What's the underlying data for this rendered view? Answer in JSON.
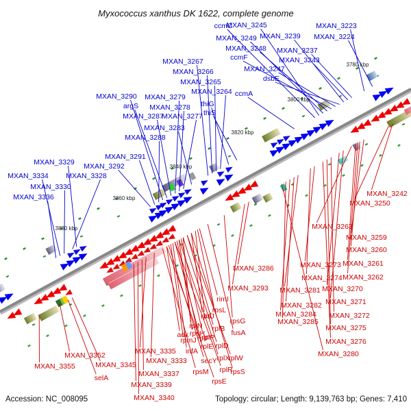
{
  "title": "Myxococcus xanthus DK 1622, complete genome",
  "footer": {
    "accession": "Accession: NC_008095",
    "stats": "Topology: circular; Length: 9,139,763 bp; Genes: 7,410"
  },
  "colors": {
    "blue": "#0000cc",
    "red": "#cc0000",
    "backbone": "#888888",
    "dash": "#009900"
  },
  "scale_labels": [
    "3780 kbp",
    "3800 kbp",
    "3820 kbp",
    "3840 kbp",
    "3860 kbp",
    "3880 kbp"
  ],
  "blue_labels": [
    "ccmC",
    "MXAN_3245",
    "MXAN_3239",
    "MXAN_3223",
    "MXAN_3249",
    "MXAN_3224",
    "MXAN_3248",
    "MXAN_3237",
    "ccmF",
    "MXAN_3243",
    "MXAN_3267",
    "MXAN_3247",
    "MXAN_3266",
    "dsbE",
    "MXAN_3265",
    "MXAN_3264",
    "ccmA",
    "MXAN_3290",
    "MXAN_3279",
    "thiG",
    "argS",
    "MXAN_3278",
    "thiS",
    "MXAN_3287",
    "MXAN_3277",
    "MXAN_3283",
    "MXAN_3288",
    "MXAN_3291",
    "MXAN_3329",
    "MXAN_3292",
    "MXAN_3334",
    "MXAN_3328",
    "MXAN_3330",
    "MXAN_3336"
  ],
  "red_labels": [
    "MXAN_3242",
    "MXAN_3250",
    "MXAN_3263",
    "MXAN_3259",
    "MXAN_3260",
    "MXAN_3261",
    "MXAN_3286",
    "MXAN_3273",
    "MXAN_3262",
    "MXAN_3274",
    "MXAN_3281",
    "MXAN_3270",
    "MXAN_3293",
    "rimI",
    "MXAN_3271",
    "rpsL",
    "MXAN_3282",
    "tuf",
    "rpsJ",
    "rpsG",
    "MXAN_3284",
    "MXAN_3272",
    "rplN",
    "MXAN_3285",
    "rplB",
    "rpsH",
    "MXAN_3275",
    "fusA",
    "rplF",
    "rplP",
    "MXAN_3276",
    "rpmJ",
    "adk",
    "MXAN_3335",
    "infA",
    "rplE",
    "rplD",
    "MXAN_3352",
    "MXAN_3280",
    "MXAN_3333",
    "secY",
    "rplX",
    "rplW",
    "MXAN_3345",
    "MXAN_3355",
    "rpsM",
    "rplR",
    "MXAN_3337",
    "rpsS",
    "rpsE",
    "selA",
    "MXAN_3339",
    "MXAN_3340"
  ]
}
